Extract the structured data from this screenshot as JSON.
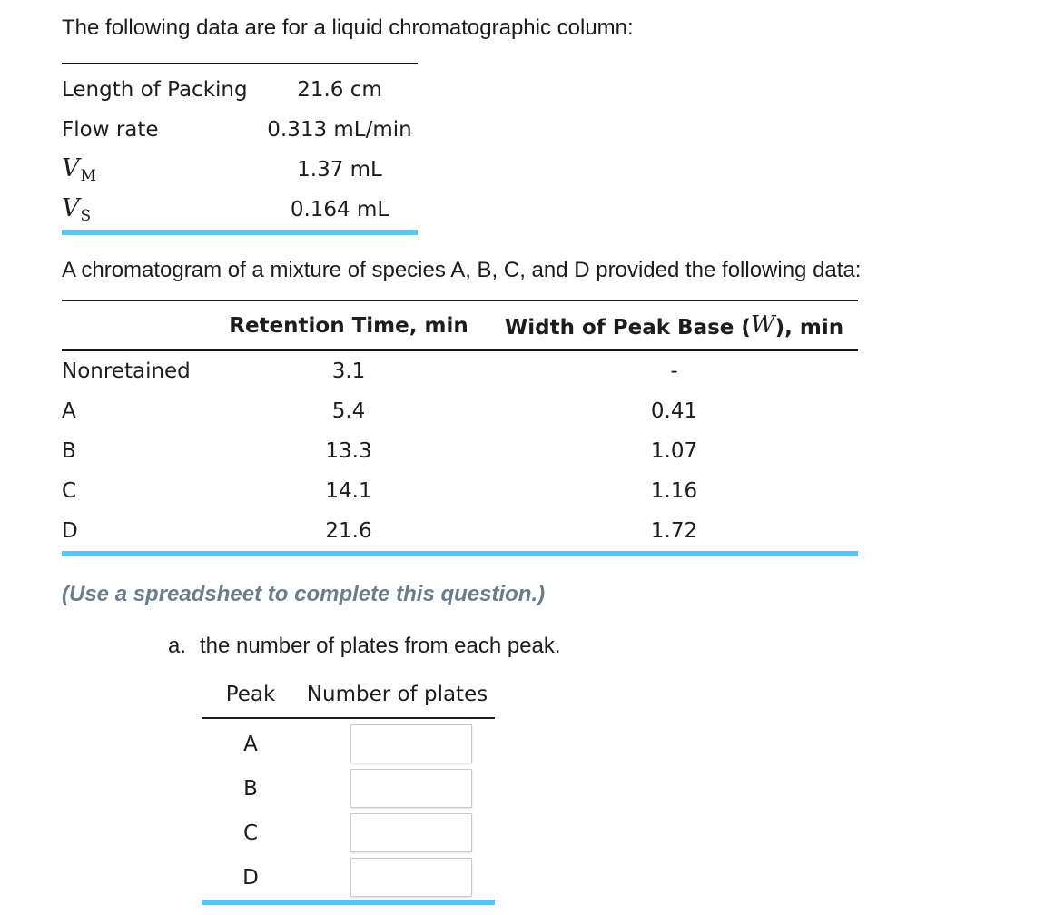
{
  "intro": {
    "text": "The following data are for a liquid chromatographic column:"
  },
  "column_table": {
    "rows": [
      {
        "label": "Length of Packing",
        "value": "21.6 cm"
      },
      {
        "label": "Flow rate",
        "value": "0.313 mL/min"
      },
      {
        "label_var": "V",
        "label_sub": "M",
        "value": "1.37 mL"
      },
      {
        "label_var": "V",
        "label_sub": "S",
        "value": "0.164 mL"
      }
    ]
  },
  "chromatogram": {
    "intro": "A chromatogram of a mixture of species A, B, C, and D provided the following data:",
    "header_retention": "Retention Time, min",
    "header_width_prefix": "Width of Peak Base (",
    "header_width_var": "W",
    "header_width_suffix": "), min",
    "rows": [
      {
        "species": "Nonretained",
        "retention": "3.1",
        "width": "-"
      },
      {
        "species": "A",
        "retention": "5.4",
        "width": "0.41"
      },
      {
        "species": "B",
        "retention": "13.3",
        "width": "1.07"
      },
      {
        "species": "C",
        "retention": "14.1",
        "width": "1.16"
      },
      {
        "species": "D",
        "retention": "21.6",
        "width": "1.72"
      }
    ]
  },
  "note": {
    "text": "(Use a spreadsheet to complete this question.)"
  },
  "question_a": {
    "marker": "a.",
    "text": "the number of plates from each peak."
  },
  "plates_table": {
    "header_peak": "Peak",
    "header_plates": "Number of plates",
    "rows": [
      {
        "peak": "A",
        "value": ""
      },
      {
        "peak": "B",
        "value": ""
      },
      {
        "peak": "C",
        "value": ""
      },
      {
        "peak": "D",
        "value": ""
      }
    ]
  },
  "colors": {
    "accent": "#58c6f2",
    "note_color": "#6b7d8b"
  }
}
